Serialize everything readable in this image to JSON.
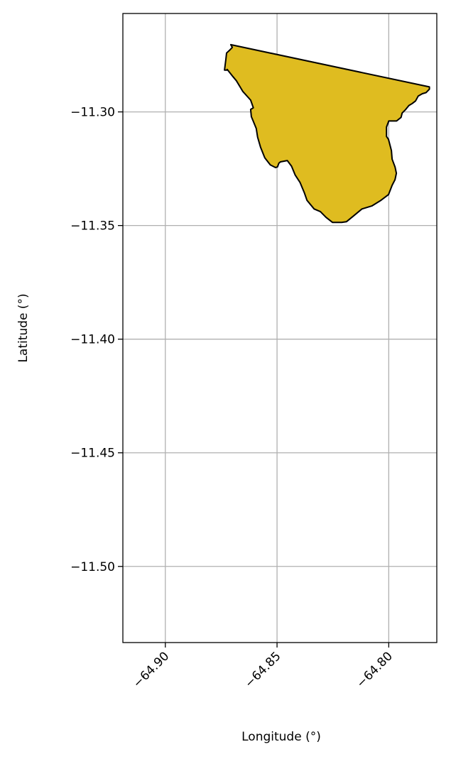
{
  "chart_data": {
    "type": "map",
    "title": "",
    "xlabel": "Longitude (°)",
    "ylabel": "Latitude (°)",
    "xlim": [
      -64.919,
      -64.7785
    ],
    "ylim": [
      -11.5335,
      -11.2567
    ],
    "grid": true,
    "xticks": [
      -64.9,
      -64.85,
      -64.8
    ],
    "xtick_labels": [
      "−64.90",
      "−64.85",
      "−64.80"
    ],
    "yticks": [
      -11.3,
      -11.35,
      -11.4,
      -11.45,
      -11.5
    ],
    "ytick_labels": [
      "−11.30",
      "−11.35",
      "−11.40",
      "−11.45",
      "−11.50"
    ],
    "fill_color": "#DFBC20",
    "edge_color": "#000000",
    "polygon": [
      [
        -64.8707,
        -11.2704
      ],
      [
        -64.87,
        -11.2716
      ],
      [
        -64.8713,
        -11.2729
      ],
      [
        -64.8726,
        -11.2741
      ],
      [
        -64.8729,
        -11.2769
      ],
      [
        -64.8735,
        -11.2816
      ],
      [
        -64.8723,
        -11.2816
      ],
      [
        -64.8723,
        -11.2813
      ],
      [
        -64.8698,
        -11.2844
      ],
      [
        -64.8682,
        -11.2863
      ],
      [
        -64.8653,
        -11.291
      ],
      [
        -64.8618,
        -11.2948
      ],
      [
        -64.8606,
        -11.2982
      ],
      [
        -64.8618,
        -11.2989
      ],
      [
        -64.8615,
        -11.3021
      ],
      [
        -64.8606,
        -11.3042
      ],
      [
        -64.8593,
        -11.3073
      ],
      [
        -64.8587,
        -11.3111
      ],
      [
        -64.8574,
        -11.3155
      ],
      [
        -64.8555,
        -11.3202
      ],
      [
        -64.853,
        -11.3233
      ],
      [
        -64.8507,
        -11.3245
      ],
      [
        -64.8498,
        -11.3242
      ],
      [
        -64.8492,
        -11.3226
      ],
      [
        -64.8485,
        -11.322
      ],
      [
        -64.8454,
        -11.3214
      ],
      [
        -64.8435,
        -11.3239
      ],
      [
        -64.8419,
        -11.3277
      ],
      [
        -64.8397,
        -11.3311
      ],
      [
        -64.8378,
        -11.3355
      ],
      [
        -64.8366,
        -11.3389
      ],
      [
        -64.8334,
        -11.3427
      ],
      [
        -64.8306,
        -11.3439
      ],
      [
        -64.8281,
        -11.3464
      ],
      [
        -64.8252,
        -11.3486
      ],
      [
        -64.8211,
        -11.3486
      ],
      [
        -64.8189,
        -11.3483
      ],
      [
        -64.8158,
        -11.3458
      ],
      [
        -64.812,
        -11.3427
      ],
      [
        -64.8076,
        -11.3414
      ],
      [
        -64.8035,
        -11.3389
      ],
      [
        -64.8001,
        -11.3364
      ],
      [
        -64.7985,
        -11.3323
      ],
      [
        -64.7972,
        -11.3298
      ],
      [
        -64.7966,
        -11.327
      ],
      [
        -64.7972,
        -11.3242
      ],
      [
        -64.7985,
        -11.3208
      ],
      [
        -64.7988,
        -11.317
      ],
      [
        -64.8001,
        -11.3121
      ],
      [
        -64.801,
        -11.3108
      ],
      [
        -64.801,
        -11.3086
      ],
      [
        -64.801,
        -11.3067
      ],
      [
        -64.8,
        -11.304
      ],
      [
        -64.7965,
        -11.304
      ],
      [
        -64.7945,
        -11.3024
      ],
      [
        -64.794,
        -11.3005
      ],
      [
        -64.7925,
        -11.299
      ],
      [
        -64.791,
        -11.2972
      ],
      [
        -64.7895,
        -11.2963
      ],
      [
        -64.788,
        -11.2952
      ],
      [
        -64.7868,
        -11.293
      ],
      [
        -64.785,
        -11.292
      ],
      [
        -64.7833,
        -11.2915
      ],
      [
        -64.7818,
        -11.29
      ],
      [
        -64.7818,
        -11.289
      ]
    ]
  }
}
